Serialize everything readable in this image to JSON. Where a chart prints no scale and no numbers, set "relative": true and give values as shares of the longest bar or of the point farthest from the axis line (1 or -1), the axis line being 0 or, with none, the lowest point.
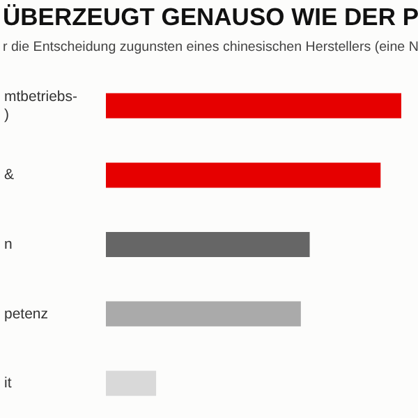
{
  "chart_data": {
    "type": "bar",
    "orientation": "horizontal",
    "relative": true,
    "title": "ÜBERZEUGT GENAUSO WIE DER P",
    "subtitle": "r die Entscheidung zugunsten eines chinesischen Herstellers (eine N",
    "categories": [
      "mtbetriebs-\n)",
      "&",
      "n",
      "petenz",
      "it"
    ],
    "values": [
      1,
      0.93,
      0.69,
      0.66,
      0.17
    ],
    "colors": [
      "#e60000",
      "#e60000",
      "#666666",
      "#aaaaaa",
      "#d9d9d9"
    ],
    "data_labels": false
  }
}
